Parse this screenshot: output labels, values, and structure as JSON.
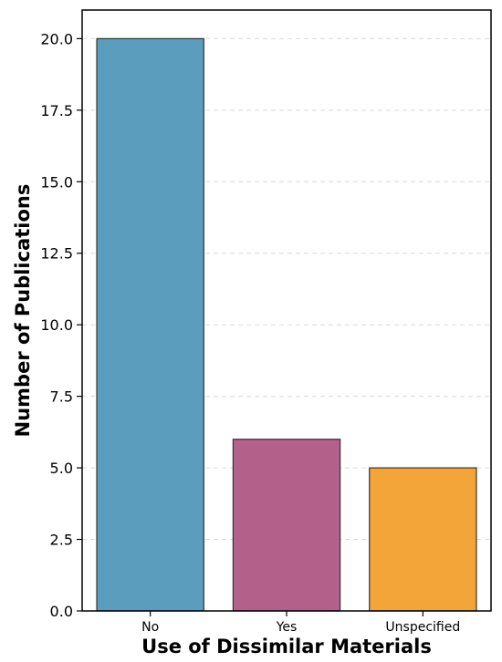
{
  "chart_data": {
    "type": "bar",
    "title": "",
    "xlabel": "Use of Dissimilar Materials",
    "ylabel": "Number of Publications",
    "categories": [
      "No",
      "Yes",
      "Unspecified"
    ],
    "values": [
      20,
      6,
      5
    ],
    "colors": [
      "#5b9dbd",
      "#b3618a",
      "#f4a53a"
    ],
    "edge_color": "#333333",
    "ylim": [
      0,
      21
    ],
    "yticks": [
      0.0,
      2.5,
      5.0,
      7.5,
      10.0,
      12.5,
      15.0,
      17.5,
      20.0
    ],
    "ytick_labels": [
      "0.0",
      "2.5",
      "5.0",
      "7.5",
      "10.0",
      "12.5",
      "15.0",
      "17.5",
      "20.0"
    ],
    "grid": "y-dashed",
    "legend": "none"
  }
}
